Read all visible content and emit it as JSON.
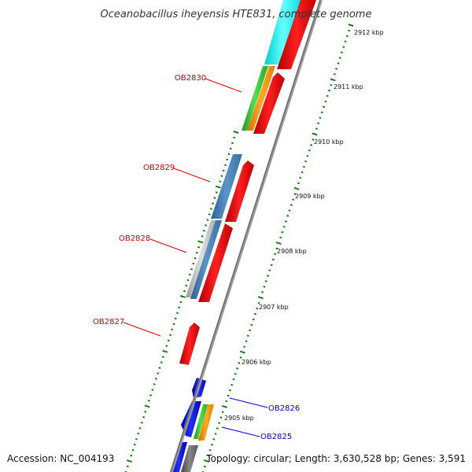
{
  "title": "Oceanobacillus iheyensis HTE831, complete genome",
  "accession": "Accession: NC_004193",
  "topology": "Topology: circular; Length: 3,630,528 bp; Genes: 3,591",
  "scale_labels": [
    "2905 kbp",
    "2906 kbp",
    "2907 kbp",
    "2908 kbp",
    "2909 kbp",
    "2910 kbp",
    "2911 kbp",
    "2912 kbp"
  ],
  "gene_labels": [
    {
      "text": "OB2830",
      "color": "#cc0000"
    },
    {
      "text": "OB2829",
      "color": "#cc0000"
    },
    {
      "text": "OB2828",
      "color": "#cc0000"
    },
    {
      "text": "OB2827",
      "color": "#cc0000"
    },
    {
      "text": "OB2826",
      "color": "#0000cc"
    },
    {
      "text": "OB2825",
      "color": "#0000cc"
    }
  ],
  "colors": {
    "forward_gene": "#ff0000",
    "reverse_gene": "#0000ee",
    "backbone": "#888888",
    "tick": "#1a7a1a",
    "cyan": "#00ffff",
    "green": "#33cc33",
    "orange": "#ff9900",
    "steelblue": "#4682b4",
    "silver": "#bbbbbb",
    "darkgray": "#666666"
  }
}
